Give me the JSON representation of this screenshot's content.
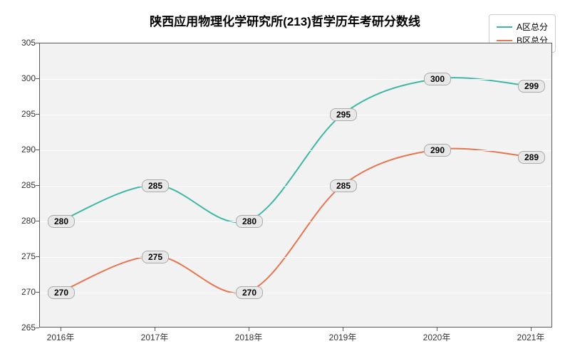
{
  "chart": {
    "type": "line",
    "title": "陕西应用物理化学研究所(213)哲学历年考研分数线",
    "title_fontsize": 17,
    "title_color": "#000000",
    "background_color": "#ffffff",
    "plot_background": "#f2f2f2",
    "grid_color": "#ffffff",
    "axis_color": "#5a5a5a",
    "x_categories": [
      "2016年",
      "2017年",
      "2018年",
      "2019年",
      "2020年",
      "2021年"
    ],
    "ylim": [
      265,
      305
    ],
    "ytick_step": 5,
    "label_fontsize": 12,
    "line_width": 2,
    "smooth": true,
    "series": [
      {
        "name": "A区总分",
        "color": "#3db8a5",
        "values": [
          280,
          285,
          280,
          295,
          300,
          299
        ]
      },
      {
        "name": "B区总分",
        "color": "#e87450",
        "values": [
          270,
          275,
          270,
          285,
          290,
          289
        ]
      }
    ],
    "legend": {
      "position": "top-right",
      "border_color": "#cccccc",
      "fontsize": 12
    },
    "data_label": {
      "bg": "#e8e8e8",
      "border": "#aaaaaa",
      "fontsize": 12,
      "radius": 8
    }
  }
}
